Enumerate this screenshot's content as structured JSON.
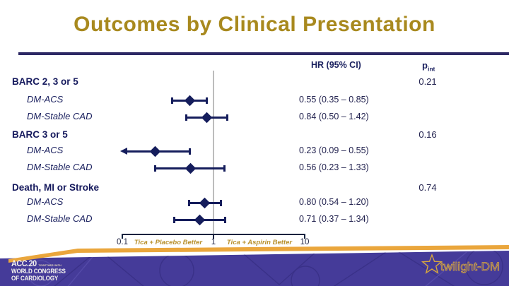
{
  "slide": {
    "title": "Outcomes by Clinical Presentation",
    "colors": {
      "title_gold": "#a8891e",
      "navy": "#151d5c",
      "divider_navy": "#2d2864",
      "axis_label_gold": "#b8902c",
      "ribbon_gold": "#eaa63c",
      "footer_purple": "#453b99",
      "footer_pattern_dark": "#3a3188",
      "reference_line_gray": "#bcbcbc"
    }
  },
  "table": {
    "hr_column_header": "HR (95% CI)",
    "p_column_header_base": "p",
    "p_column_header_sub": "int"
  },
  "chart_data": {
    "type": "forest",
    "title": "Outcomes by Clinical Presentation",
    "x_axis": {
      "scale": "log",
      "min": 0.1,
      "max": 10,
      "ticks": [
        0.1,
        1,
        10
      ],
      "tick_labels": [
        "0.1",
        "1",
        "10"
      ],
      "reference_line": 1,
      "left_direction_label": "Tica + Placebo Better",
      "right_direction_label": "Tica + Aspirin Better"
    },
    "groups": [
      {
        "label": "BARC 2, 3 or 5",
        "p_int": "0.21",
        "rows": [
          {
            "label": "DM-ACS",
            "hr": 0.55,
            "ci_low": 0.35,
            "ci_high": 0.85,
            "text": "0.55 (0.35 – 0.85)"
          },
          {
            "label": "DM-Stable CAD",
            "hr": 0.84,
            "ci_low": 0.5,
            "ci_high": 1.42,
            "text": "0.84 (0.50 – 1.42)"
          }
        ]
      },
      {
        "label": "BARC 3 or 5",
        "p_int": "0.16",
        "rows": [
          {
            "label": "DM-ACS",
            "hr": 0.23,
            "ci_low": 0.09,
            "ci_high": 0.55,
            "text": "0.23 (0.09 – 0.55)"
          },
          {
            "label": "DM-Stable CAD",
            "hr": 0.56,
            "ci_low": 0.23,
            "ci_high": 1.33,
            "text": "0.56 (0.23 – 1.33)"
          }
        ]
      },
      {
        "label": "Death, MI or Stroke",
        "p_int": "0.74",
        "rows": [
          {
            "label": "DM-ACS",
            "hr": 0.8,
            "ci_low": 0.54,
            "ci_high": 1.2,
            "text": "0.80 (0.54 – 1.20)"
          },
          {
            "label": "DM-Stable CAD",
            "hr": 0.71,
            "ci_low": 0.37,
            "ci_high": 1.34,
            "text": "0.71 (0.37 – 1.34)"
          }
        ]
      }
    ]
  },
  "footer": {
    "acc_logo": {
      "name": "ACC.20",
      "tagline": "TOGETHER WITH",
      "line2": "WORLD CONGRESS",
      "line3": "OF CARDIOLOGY"
    },
    "trial_logo": {
      "text": "twilight-DM",
      "icon": "star-outline-icon"
    }
  }
}
